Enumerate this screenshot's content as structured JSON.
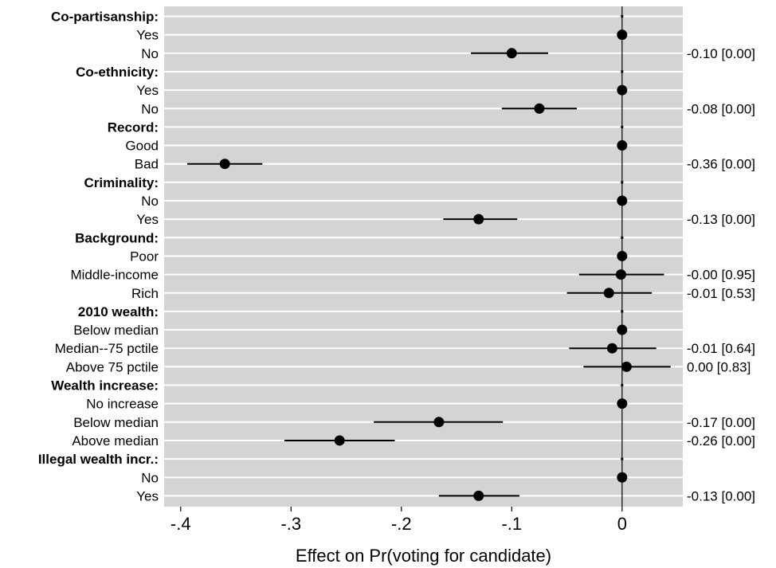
{
  "chart_data": {
    "type": "coefficient_plot",
    "xlabel": "Effect on Pr(voting for candidate)",
    "xlim": [
      -0.415,
      0.055
    ],
    "xticks": [
      {
        "value": -0.4,
        "label": "-.4"
      },
      {
        "value": -0.3,
        "label": "-.3"
      },
      {
        "value": -0.2,
        "label": "-.2"
      },
      {
        "value": -0.1,
        "label": "-.1"
      },
      {
        "value": 0.0,
        "label": "0"
      }
    ],
    "reference_line": 0,
    "grid": true,
    "rows": [
      {
        "label": "Co-partisanship:",
        "header": true
      },
      {
        "label": "Yes",
        "estimate": 0.0,
        "ci": [
          0.0,
          0.0
        ],
        "annotation": ""
      },
      {
        "label": "No",
        "estimate": -0.1,
        "ci": [
          -0.137,
          -0.067
        ],
        "annotation": "-0.10 [0.00]"
      },
      {
        "label": "Co-ethnicity:",
        "header": true
      },
      {
        "label": "Yes",
        "estimate": 0.0,
        "ci": [
          0.0,
          0.0
        ],
        "annotation": ""
      },
      {
        "label": "No",
        "estimate": -0.075,
        "ci": [
          -0.109,
          -0.041
        ],
        "annotation": "-0.08 [0.00]"
      },
      {
        "label": "Record:",
        "header": true
      },
      {
        "label": "Good",
        "estimate": 0.0,
        "ci": [
          0.0,
          0.0
        ],
        "annotation": ""
      },
      {
        "label": "Bad",
        "estimate": -0.36,
        "ci": [
          -0.394,
          -0.326
        ],
        "annotation": "-0.36 [0.00]"
      },
      {
        "label": "Criminality:",
        "header": true
      },
      {
        "label": "No",
        "estimate": 0.0,
        "ci": [
          0.0,
          0.0
        ],
        "annotation": ""
      },
      {
        "label": "Yes",
        "estimate": -0.13,
        "ci": [
          -0.162,
          -0.095
        ],
        "annotation": "-0.13 [0.00]"
      },
      {
        "label": "Background:",
        "header": true
      },
      {
        "label": "Poor",
        "estimate": 0.0,
        "ci": [
          0.0,
          0.0
        ],
        "annotation": ""
      },
      {
        "label": "Middle-income",
        "estimate": -0.001,
        "ci": [
          -0.039,
          0.038
        ],
        "annotation": "-0.00 [0.95]"
      },
      {
        "label": "Rich",
        "estimate": -0.012,
        "ci": [
          -0.05,
          0.027
        ],
        "annotation": "-0.01 [0.53]"
      },
      {
        "label": "2010 wealth:",
        "header": true
      },
      {
        "label": "Below median",
        "estimate": 0.0,
        "ci": [
          0.0,
          0.0
        ],
        "annotation": ""
      },
      {
        "label": "Median--75 pctile",
        "estimate": -0.009,
        "ci": [
          -0.048,
          0.031
        ],
        "annotation": "-0.01 [0.64]"
      },
      {
        "label": "Above 75 pctile",
        "estimate": 0.004,
        "ci": [
          -0.035,
          0.044
        ],
        "annotation": "0.00 [0.83]"
      },
      {
        "label": "Wealth increase:",
        "header": true
      },
      {
        "label": "No increase",
        "estimate": 0.0,
        "ci": [
          0.0,
          0.0
        ],
        "annotation": ""
      },
      {
        "label": "Below median",
        "estimate": -0.166,
        "ci": [
          -0.225,
          -0.108
        ],
        "annotation": "-0.17 [0.00]"
      },
      {
        "label": "Above median",
        "estimate": -0.256,
        "ci": [
          -0.306,
          -0.206
        ],
        "annotation": "-0.26 [0.00]"
      },
      {
        "label": "Illegal wealth incr.:",
        "header": true
      },
      {
        "label": "No",
        "estimate": 0.0,
        "ci": [
          0.0,
          0.0
        ],
        "annotation": ""
      },
      {
        "label": "Yes",
        "estimate": -0.13,
        "ci": [
          -0.166,
          -0.093
        ],
        "annotation": "-0.13 [0.00]"
      }
    ]
  }
}
